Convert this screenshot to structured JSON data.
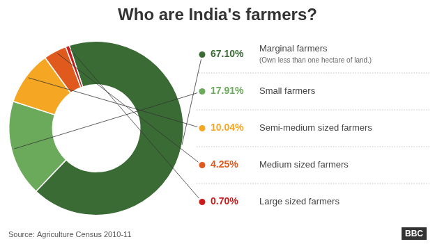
{
  "chart_data": {
    "type": "doughnut",
    "title": "Who are India's farmers?",
    "categories": [
      "Marginal farmers",
      "Small farmers",
      "Semi-medium sized farmers",
      "Medium sized farmers",
      "Large sized farmers"
    ],
    "values": [
      67.1,
      17.91,
      10.04,
      4.25,
      0.7
    ],
    "value_labels": [
      "67.10%",
      "17.91%",
      "10.04%",
      "4.25%",
      "0.70%"
    ],
    "colors": [
      "#3a6b35",
      "#6aaa5a",
      "#f5a623",
      "#e05a1e",
      "#cc1a1a"
    ],
    "legend": "right",
    "annotations": [
      {
        "text": "(Own less than one hectare of land.)",
        "category": "Marginal farmers"
      },
      {
        "text": "Source: Agriculture Census 2010-11"
      },
      {
        "text": "BBC"
      }
    ]
  }
}
